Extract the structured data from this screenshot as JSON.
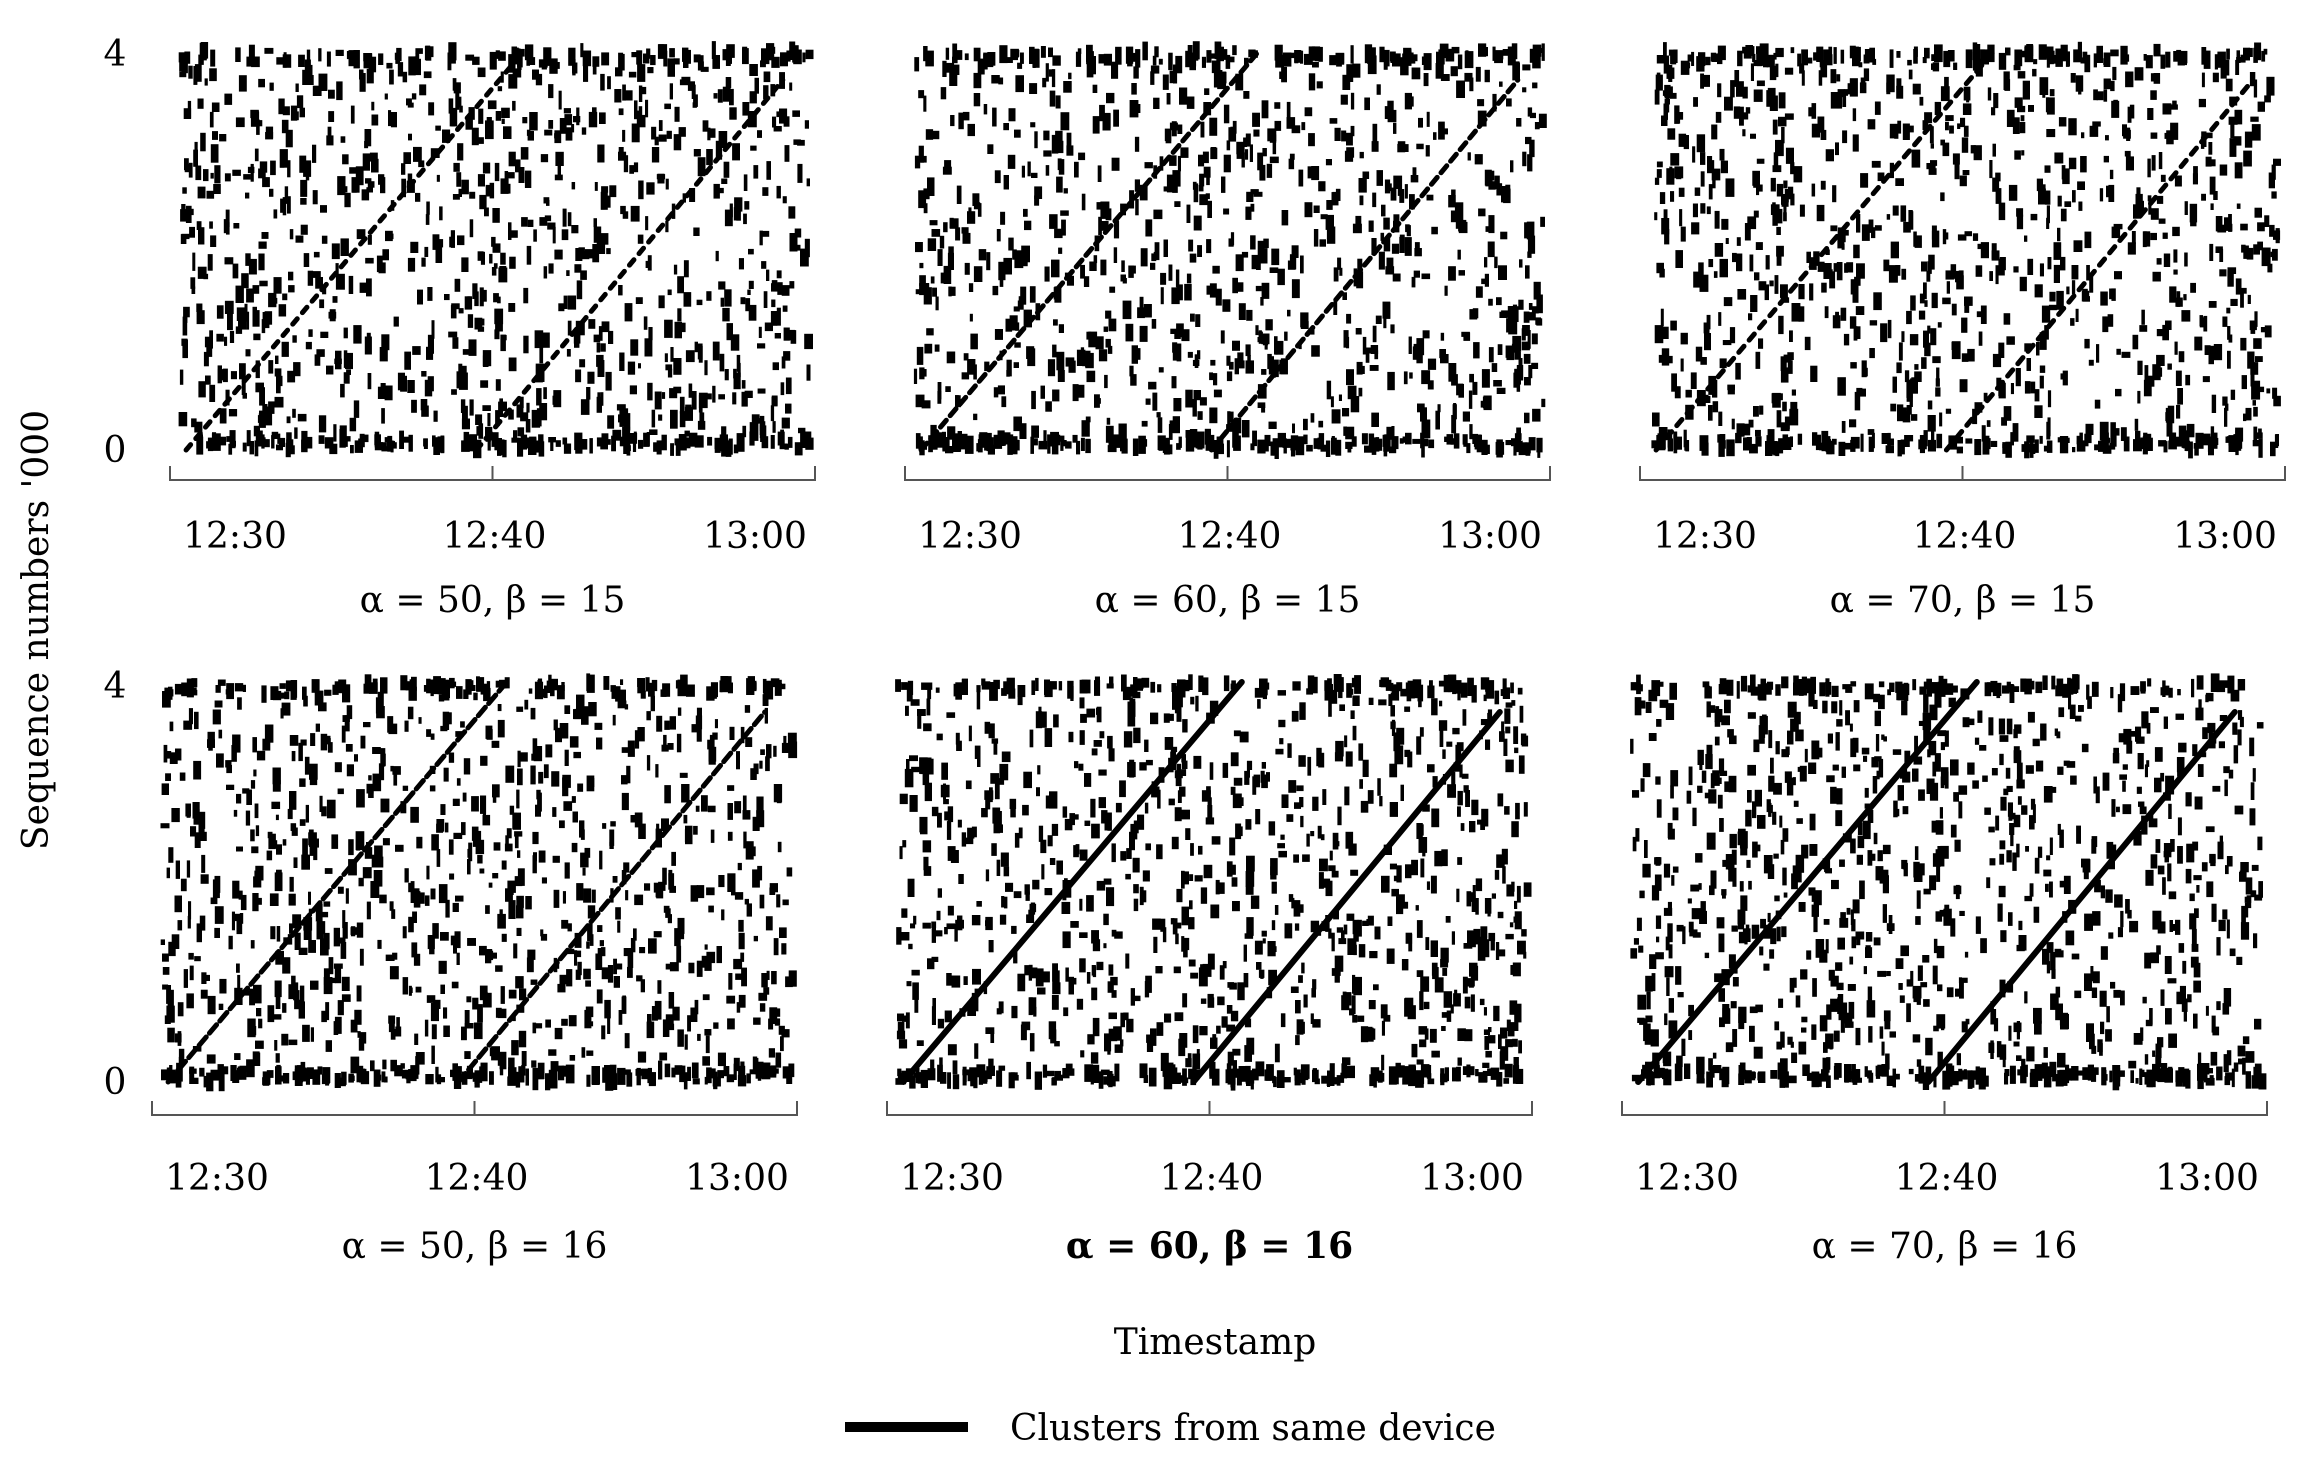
{
  "chart_data": {
    "type": "scatter",
    "y_axis_title": "Sequence numbers '000",
    "x_axis_title": "Timestamp",
    "legend": [
      {
        "label": "Clusters from same device",
        "style": "thick black line",
        "color": "#000000"
      }
    ],
    "colors": {
      "points": "#000000",
      "cluster_line": "#000000",
      "axis": "#555555"
    },
    "x_range": [
      "12:23",
      "13:03"
    ],
    "x_ticks": [
      "12:30",
      "12:40",
      "13:00"
    ],
    "y_range": [
      0,
      4
    ],
    "y_ticks": [
      "0",
      "4"
    ],
    "panels": [
      {
        "title": "α = 50, β = 15",
        "alpha": 50,
        "beta": 15,
        "bold": false,
        "cluster_visibility": 0.25,
        "cluster_lines": [
          {
            "from": [
              "12:24",
              0
            ],
            "to": [
              "12:45",
              4
            ]
          },
          {
            "from": [
              "12:42",
              0
            ],
            "to": [
              "13:01",
              3.7
            ]
          }
        ]
      },
      {
        "title": "α = 60, β = 15",
        "alpha": 60,
        "beta": 15,
        "bold": false,
        "cluster_visibility": 0.45,
        "cluster_lines": [
          {
            "from": [
              "12:24",
              0
            ],
            "to": [
              "12:45",
              4
            ]
          },
          {
            "from": [
              "12:42",
              0
            ],
            "to": [
              "13:01",
              3.7
            ]
          }
        ]
      },
      {
        "title": "α = 70, β = 15",
        "alpha": 70,
        "beta": 15,
        "bold": false,
        "cluster_visibility": 0.3,
        "cluster_lines": [
          {
            "from": [
              "12:24",
              0
            ],
            "to": [
              "12:45",
              4
            ]
          },
          {
            "from": [
              "12:42",
              0
            ],
            "to": [
              "13:01",
              3.7
            ]
          }
        ]
      },
      {
        "title": "α = 50, β = 16",
        "alpha": 50,
        "beta": 16,
        "bold": false,
        "cluster_visibility": 0.6,
        "cluster_lines": [
          {
            "from": [
              "12:24",
              0
            ],
            "to": [
              "12:45",
              4
            ]
          },
          {
            "from": [
              "12:42",
              0
            ],
            "to": [
              "13:01",
              3.7
            ]
          }
        ]
      },
      {
        "title": "α = 60, β = 16",
        "alpha": 60,
        "beta": 16,
        "bold": true,
        "cluster_visibility": 1.0,
        "cluster_lines": [
          {
            "from": [
              "12:24",
              0
            ],
            "to": [
              "12:45",
              4
            ]
          },
          {
            "from": [
              "12:42",
              0
            ],
            "to": [
              "13:01",
              3.7
            ]
          }
        ]
      },
      {
        "title": "α = 70, β = 16",
        "alpha": 70,
        "beta": 16,
        "bold": false,
        "cluster_visibility": 1.0,
        "cluster_lines": [
          {
            "from": [
              "12:24",
              0
            ],
            "to": [
              "12:45",
              4
            ]
          },
          {
            "from": [
              "12:42",
              0
            ],
            "to": [
              "13:01",
              3.7
            ]
          }
        ]
      }
    ]
  }
}
